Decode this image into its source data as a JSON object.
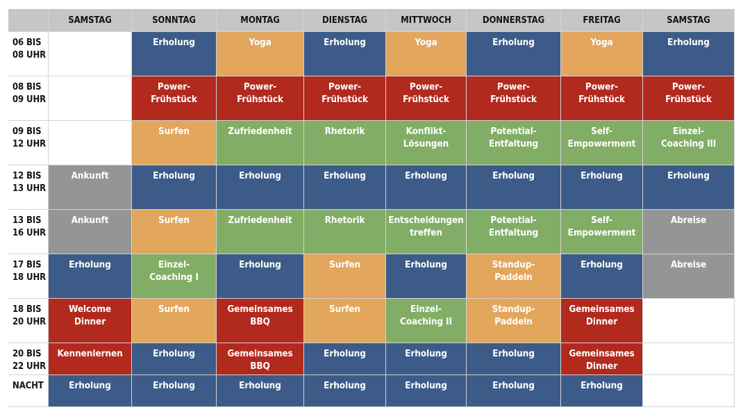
{
  "days": [
    "",
    "SAMSTAG",
    "SONNTAG",
    "MONTAG",
    "DIENSTAG",
    "MITTWOCH",
    "DONNERSTAG",
    "FREITAG",
    "SAMSTAG"
  ],
  "colors": {
    "blue": "#3d5b88",
    "orange": "#e2a65c",
    "red": "#b2291d",
    "green": "#82ad66",
    "gray": "#959595",
    "empty": "#ffffff",
    "header": "#c6c6c6"
  },
  "rows": [
    {
      "time": "06 BIS\n08 UHR",
      "cells": [
        {
          "text": "",
          "color": "empty"
        },
        {
          "text": "Erholung",
          "color": "blue"
        },
        {
          "text": "Yoga",
          "color": "orange"
        },
        {
          "text": "Erholung",
          "color": "blue"
        },
        {
          "text": "Yoga",
          "color": "orange"
        },
        {
          "text": "Erholung",
          "color": "blue"
        },
        {
          "text": "Yoga",
          "color": "orange"
        },
        {
          "text": "Erholung",
          "color": "blue"
        }
      ]
    },
    {
      "time": "08 BIS\n09 UHR",
      "cells": [
        {
          "text": "",
          "color": "empty"
        },
        {
          "text": "Power-\nFrühstück",
          "color": "red"
        },
        {
          "text": "Power-\nFrühstück",
          "color": "red"
        },
        {
          "text": "Power-\nFrühstück",
          "color": "red"
        },
        {
          "text": "Power-\nFrühstück",
          "color": "red"
        },
        {
          "text": "Power-\nFrühstück",
          "color": "red"
        },
        {
          "text": "Power-\nFrühstück",
          "color": "red"
        },
        {
          "text": "Power-\nFrühstück",
          "color": "red"
        }
      ]
    },
    {
      "time": "09 BIS\n12 UHR",
      "cells": [
        {
          "text": "",
          "color": "empty"
        },
        {
          "text": "Surfen",
          "color": "orange"
        },
        {
          "text": "Zufriedenheit",
          "color": "green"
        },
        {
          "text": "Rhetorik",
          "color": "green"
        },
        {
          "text": "Konflikt-\nLösungen",
          "color": "green"
        },
        {
          "text": "Potential-\nEntfaltung",
          "color": "green"
        },
        {
          "text": "Self-\nEmpowerment",
          "color": "green"
        },
        {
          "text": "Einzel-\nCoaching III",
          "color": "green"
        }
      ]
    },
    {
      "time": "12 BIS\n13 UHR",
      "cells": [
        {
          "text": "Ankunft",
          "color": "gray"
        },
        {
          "text": "Erholung",
          "color": "blue"
        },
        {
          "text": "Erholung",
          "color": "blue"
        },
        {
          "text": "Erholung",
          "color": "blue"
        },
        {
          "text": "Erholung",
          "color": "blue"
        },
        {
          "text": "Erholung",
          "color": "blue"
        },
        {
          "text": "Erholung",
          "color": "blue"
        },
        {
          "text": "Erholung",
          "color": "blue"
        }
      ]
    },
    {
      "time": "13 BIS\n16 UHR",
      "cells": [
        {
          "text": "Ankunft",
          "color": "gray"
        },
        {
          "text": "Surfen",
          "color": "orange"
        },
        {
          "text": "Zufriedenheit",
          "color": "green"
        },
        {
          "text": "Rhetorik",
          "color": "green"
        },
        {
          "text": "Entscheidungen\ntreffen",
          "color": "green"
        },
        {
          "text": "Potential-\nEntfaltung",
          "color": "green"
        },
        {
          "text": "Self-\nEmpowerment",
          "color": "green"
        },
        {
          "text": "Abreise",
          "color": "gray"
        }
      ]
    },
    {
      "time": "17 BIS\n18 UHR",
      "cells": [
        {
          "text": "Erholung",
          "color": "blue"
        },
        {
          "text": "Einzel-\nCoaching I",
          "color": "green"
        },
        {
          "text": "Erholung",
          "color": "blue"
        },
        {
          "text": "Surfen",
          "color": "orange"
        },
        {
          "text": "Erholung",
          "color": "blue"
        },
        {
          "text": "Standup-\nPaddeln",
          "color": "orange"
        },
        {
          "text": "Erholung",
          "color": "blue"
        },
        {
          "text": "Abreise",
          "color": "gray"
        }
      ]
    },
    {
      "time": "18 BIS\n20 UHR",
      "cells": [
        {
          "text": "Welcome\nDinner",
          "color": "red"
        },
        {
          "text": "Surfen",
          "color": "orange"
        },
        {
          "text": "Gemeinsames\nBBQ",
          "color": "red"
        },
        {
          "text": "Surfen",
          "color": "orange"
        },
        {
          "text": "Einzel-\nCoaching II",
          "color": "green"
        },
        {
          "text": "Standup-\nPaddeln",
          "color": "orange"
        },
        {
          "text": "Gemeinsames\nDinner",
          "color": "red"
        },
        {
          "text": "",
          "color": "empty"
        }
      ]
    },
    {
      "time": "20 BIS\n22 UHR",
      "cells": [
        {
          "text": "Kennenlernen",
          "color": "red"
        },
        {
          "text": "Erholung",
          "color": "blue"
        },
        {
          "text": "Gemeinsames\nBBQ",
          "color": "red"
        },
        {
          "text": "Erholung",
          "color": "blue"
        },
        {
          "text": "Erholung",
          "color": "blue"
        },
        {
          "text": "Erholung",
          "color": "blue"
        },
        {
          "text": "Gemeinsames\nDinner",
          "color": "red"
        },
        {
          "text": "",
          "color": "empty"
        }
      ]
    },
    {
      "time": "NACHT",
      "cells": [
        {
          "text": "Erholung",
          "color": "blue"
        },
        {
          "text": "Erholung",
          "color": "blue"
        },
        {
          "text": "Erholung",
          "color": "blue"
        },
        {
          "text": "Erholung",
          "color": "blue"
        },
        {
          "text": "Erholung",
          "color": "blue"
        },
        {
          "text": "Erholung",
          "color": "blue"
        },
        {
          "text": "Erholung",
          "color": "blue"
        },
        {
          "text": "",
          "color": "empty"
        }
      ]
    }
  ]
}
